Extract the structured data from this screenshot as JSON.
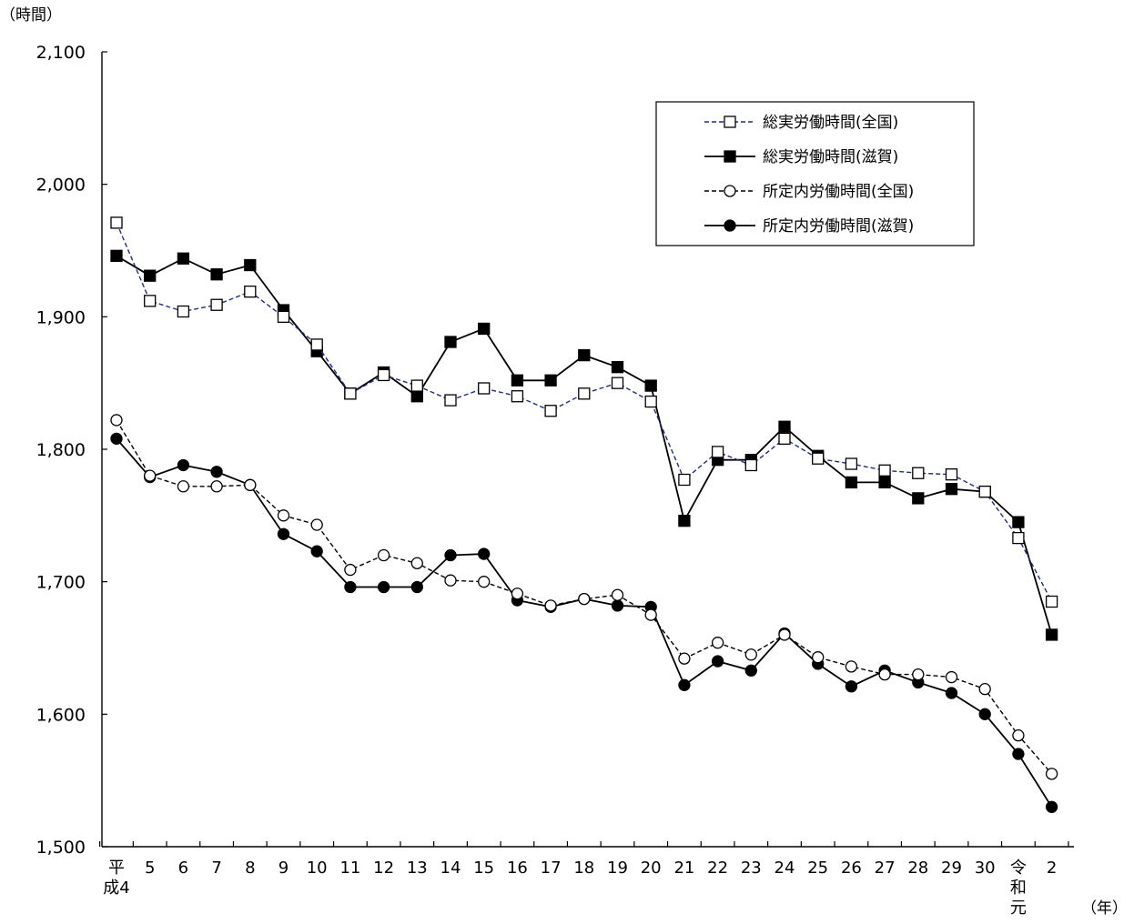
{
  "chart_data": {
    "type": "line",
    "ylabel": "（時間）",
    "xlabel": "（年）",
    "ylim": [
      1500,
      2100
    ],
    "yticks": [
      "1,500",
      "1,600",
      "1,700",
      "1,800",
      "1,900",
      "2,000",
      "2,100"
    ],
    "grid": false,
    "legend_position": "top-right",
    "categories": [
      [
        "平",
        "成4"
      ],
      [
        "5"
      ],
      [
        "6"
      ],
      [
        "7"
      ],
      [
        "8"
      ],
      [
        "9"
      ],
      [
        "10"
      ],
      [
        "11"
      ],
      [
        "12"
      ],
      [
        "13"
      ],
      [
        "14"
      ],
      [
        "15"
      ],
      [
        "16"
      ],
      [
        "17"
      ],
      [
        "18"
      ],
      [
        "19"
      ],
      [
        "20"
      ],
      [
        "21"
      ],
      [
        "22"
      ],
      [
        "23"
      ],
      [
        "24"
      ],
      [
        "25"
      ],
      [
        "26"
      ],
      [
        "27"
      ],
      [
        "28"
      ],
      [
        "29"
      ],
      [
        "30"
      ],
      [
        "令",
        "和",
        "元"
      ],
      [
        "2"
      ]
    ],
    "series": [
      {
        "name": "総実労働時間(全国)",
        "marker": "square-open",
        "line": "dashed",
        "color": "#1f2f7a",
        "values": [
          1971,
          1912,
          1904,
          1909,
          1919,
          1900,
          1879,
          1842,
          1856,
          1848,
          1837,
          1846,
          1840,
          1829,
          1842,
          1850,
          1836,
          1777,
          1798,
          1788,
          1808,
          1793,
          1789,
          1784,
          1782,
          1781,
          1768,
          1733,
          1685
        ]
      },
      {
        "name": "総実労働時間(滋賀)",
        "marker": "square-filled",
        "line": "solid",
        "color": "#000000",
        "values": [
          1946,
          1931,
          1944,
          1932,
          1939,
          1905,
          1874,
          1842,
          1858,
          1840,
          1881,
          1891,
          1852,
          1852,
          1871,
          1862,
          1848,
          1746,
          1792,
          1792,
          1817,
          1795,
          1775,
          1775,
          1763,
          1770,
          1768,
          1745,
          1660
        ]
      },
      {
        "name": "所定内労働時間(全国)",
        "marker": "circle-open",
        "line": "dashed",
        "color": "#000000",
        "values": [
          1822,
          1780,
          1772,
          1772,
          1773,
          1750,
          1743,
          1709,
          1720,
          1714,
          1701,
          1700,
          1691,
          1682,
          1687,
          1690,
          1675,
          1642,
          1654,
          1645,
          1660,
          1643,
          1636,
          1630,
          1630,
          1628,
          1619,
          1584,
          1555
        ]
      },
      {
        "name": "所定内労働時間(滋賀)",
        "marker": "circle-filled",
        "line": "solid",
        "color": "#000000",
        "values": [
          1808,
          1779,
          1788,
          1783,
          1773,
          1736,
          1723,
          1696,
          1696,
          1696,
          1720,
          1721,
          1686,
          1681,
          1687,
          1682,
          1681,
          1622,
          1640,
          1633,
          1661,
          1638,
          1621,
          1633,
          1624,
          1616,
          1600,
          1570,
          1530
        ]
      }
    ]
  }
}
